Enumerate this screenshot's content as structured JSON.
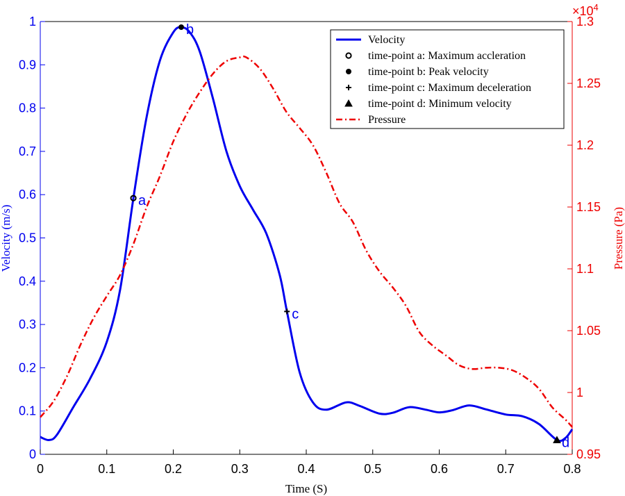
{
  "chart_data": {
    "type": "line",
    "xlabel": "Time (S)",
    "ylabel_left": "Velocity (m/s)",
    "ylabel_right": "Pressure (Pa)",
    "right_exponent_base": "×10",
    "right_exponent_power": "4",
    "xlim": [
      0,
      0.8
    ],
    "ylim_left": [
      0,
      1
    ],
    "ylim_right": [
      9500,
      13000
    ],
    "x_ticks": [
      "0",
      "0.1",
      "0.2",
      "0.3",
      "0.4",
      "0.5",
      "0.6",
      "0.7",
      "0.8"
    ],
    "y_left_ticks": [
      "0",
      "0.1",
      "0.2",
      "0.3",
      "0.4",
      "0.5",
      "0.6",
      "0.7",
      "0.8",
      "0.9",
      "1"
    ],
    "y_right_ticks": [
      "0.95",
      "1",
      "1.05",
      "1.1",
      "1.15",
      "1.2",
      "1.25",
      "1.3"
    ],
    "colors": {
      "velocity": "#0000ee",
      "pressure": "#ee0000",
      "markers": "#000000"
    },
    "series": [
      {
        "name": "Velocity",
        "axis": "left",
        "style": "solid",
        "points": [
          [
            0,
            0.04
          ],
          [
            0.013,
            0.033
          ],
          [
            0.025,
            0.045
          ],
          [
            0.05,
            0.11
          ],
          [
            0.075,
            0.175
          ],
          [
            0.1,
            0.26
          ],
          [
            0.12,
            0.38
          ],
          [
            0.14,
            0.592
          ],
          [
            0.16,
            0.78
          ],
          [
            0.18,
            0.91
          ],
          [
            0.2,
            0.975
          ],
          [
            0.212,
            0.987
          ],
          [
            0.225,
            0.975
          ],
          [
            0.24,
            0.93
          ],
          [
            0.26,
            0.82
          ],
          [
            0.28,
            0.7
          ],
          [
            0.3,
            0.62
          ],
          [
            0.32,
            0.565
          ],
          [
            0.34,
            0.51
          ],
          [
            0.36,
            0.415
          ],
          [
            0.371,
            0.33
          ],
          [
            0.39,
            0.19
          ],
          [
            0.41,
            0.12
          ],
          [
            0.43,
            0.103
          ],
          [
            0.46,
            0.12
          ],
          [
            0.48,
            0.112
          ],
          [
            0.51,
            0.094
          ],
          [
            0.53,
            0.096
          ],
          [
            0.555,
            0.109
          ],
          [
            0.58,
            0.103
          ],
          [
            0.6,
            0.097
          ],
          [
            0.62,
            0.102
          ],
          [
            0.645,
            0.113
          ],
          [
            0.67,
            0.104
          ],
          [
            0.7,
            0.092
          ],
          [
            0.725,
            0.088
          ],
          [
            0.75,
            0.07
          ],
          [
            0.777,
            0.033
          ],
          [
            0.79,
            0.038
          ],
          [
            0.8,
            0.058
          ]
        ]
      },
      {
        "name": "Pressure",
        "axis": "right",
        "style": "dash-dot",
        "points": [
          [
            0,
            9800
          ],
          [
            0.02,
            9930
          ],
          [
            0.04,
            10130
          ],
          [
            0.06,
            10380
          ],
          [
            0.08,
            10600
          ],
          [
            0.1,
            10780
          ],
          [
            0.12,
            10950
          ],
          [
            0.14,
            11200
          ],
          [
            0.16,
            11500
          ],
          [
            0.18,
            11750
          ],
          [
            0.2,
            12030
          ],
          [
            0.22,
            12250
          ],
          [
            0.24,
            12430
          ],
          [
            0.26,
            12580
          ],
          [
            0.28,
            12680
          ],
          [
            0.3,
            12710
          ],
          [
            0.31,
            12710
          ],
          [
            0.33,
            12620
          ],
          [
            0.35,
            12460
          ],
          [
            0.37,
            12270
          ],
          [
            0.39,
            12140
          ],
          [
            0.41,
            12000
          ],
          [
            0.43,
            11780
          ],
          [
            0.45,
            11530
          ],
          [
            0.47,
            11380
          ],
          [
            0.49,
            11150
          ],
          [
            0.51,
            10980
          ],
          [
            0.53,
            10850
          ],
          [
            0.55,
            10700
          ],
          [
            0.57,
            10490
          ],
          [
            0.59,
            10380
          ],
          [
            0.61,
            10300
          ],
          [
            0.63,
            10220
          ],
          [
            0.65,
            10190
          ],
          [
            0.67,
            10200
          ],
          [
            0.69,
            10200
          ],
          [
            0.71,
            10180
          ],
          [
            0.73,
            10120
          ],
          [
            0.75,
            10030
          ],
          [
            0.77,
            9880
          ],
          [
            0.79,
            9780
          ],
          [
            0.8,
            9720
          ]
        ]
      }
    ],
    "markers": [
      {
        "id": "a",
        "shape": "circle-open",
        "x": 0.14,
        "y": 0.592,
        "label": "a",
        "legend": "time-point a: Maximum accleration"
      },
      {
        "id": "b",
        "shape": "circle-filled",
        "x": 0.212,
        "y": 0.987,
        "label": "b",
        "legend": "time-point b: Peak velocity"
      },
      {
        "id": "c",
        "shape": "plus",
        "x": 0.371,
        "y": 0.33,
        "label": "c",
        "legend": "time-point c: Maximum deceleration"
      },
      {
        "id": "d",
        "shape": "triangle",
        "x": 0.777,
        "y": 0.033,
        "label": "d",
        "legend": "time-point d: Minimum velocity"
      }
    ],
    "legend": {
      "placement": "top-right",
      "entries": [
        "Velocity",
        "time-point a: Maximum accleration",
        "time-point b: Peak velocity",
        "time-point c: Maximum deceleration",
        "time-point d: Minimum velocity",
        "Pressure"
      ]
    },
    "grid": false
  }
}
